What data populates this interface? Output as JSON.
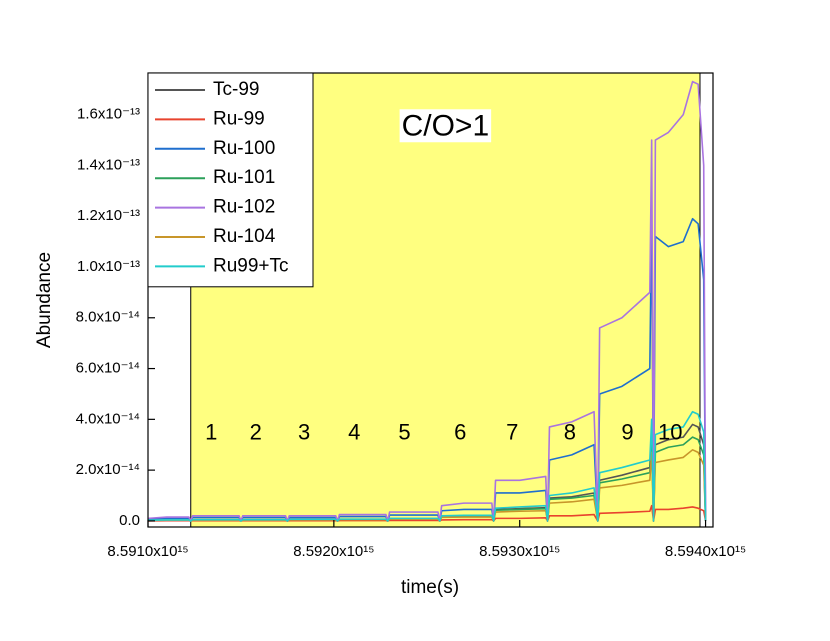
{
  "chart_data": {
    "type": "line",
    "xlabel": "time(s)",
    "ylabel": "Abundance",
    "xlim": [
      8591000000000000.0,
      8594040000000000.0
    ],
    "ylim": [
      -2.4e-15,
      1.764e-13
    ],
    "xticks": [
      {
        "value": 8591000000000000.0,
        "label": "8.5910x10¹⁵"
      },
      {
        "value": 8592000000000000.0,
        "label": "8.5920x10¹⁵"
      },
      {
        "value": 8593000000000000.0,
        "label": "8.5930x10¹⁵"
      },
      {
        "value": 8594000000000000.0,
        "label": "8.5940x10¹⁵"
      }
    ],
    "yticks": [
      {
        "value": 0,
        "label": "0.0"
      },
      {
        "value": 2e-14,
        "label": "2.0x10⁻¹⁴"
      },
      {
        "value": 4e-14,
        "label": "4.0x10⁻¹⁴"
      },
      {
        "value": 6e-14,
        "label": "6.0x10⁻¹⁴"
      },
      {
        "value": 8e-14,
        "label": "8.0x10⁻¹⁴"
      },
      {
        "value": 1e-13,
        "label": "1.0x10⁻¹³"
      },
      {
        "value": 1.2e-13,
        "label": "1.2x10⁻¹³"
      },
      {
        "value": 1.4e-13,
        "label": "1.4x10⁻¹³"
      },
      {
        "value": 1.6e-13,
        "label": "1.6x10⁻¹³"
      }
    ],
    "legend": "upper left",
    "highlight_xlim": [
      8591230000000000.0,
      8593970000000000.0
    ],
    "highlight_color": "#ffff80",
    "annotations": [
      {
        "text": "C/O>1",
        "x": 8592600000000000.0,
        "y": 1.55e-13
      },
      {
        "text": "1",
        "x": 8591340000000000.0,
        "y": 3.43e-14
      },
      {
        "text": "2",
        "x": 8591580000000000.0,
        "y": 3.43e-14
      },
      {
        "text": "3",
        "x": 8591840000000000.0,
        "y": 3.43e-14
      },
      {
        "text": "4",
        "x": 8592110000000000.0,
        "y": 3.43e-14
      },
      {
        "text": "5",
        "x": 8592380000000000.0,
        "y": 3.43e-14
      },
      {
        "text": "6",
        "x": 8592680000000000.0,
        "y": 3.43e-14
      },
      {
        "text": "7",
        "x": 8592960000000000.0,
        "y": 3.43e-14
      },
      {
        "text": "8",
        "x": 8593270000000000.0,
        "y": 3.43e-14
      },
      {
        "text": "9",
        "x": 8593580000000000.0,
        "y": 3.43e-14
      },
      {
        "text": "10",
        "x": 8593810000000000.0,
        "y": 3.43e-14
      }
    ],
    "x": [
      8591000000000000.0,
      8591100000000000.0,
      8591220000000000.0,
      8591230000000000.0,
      8591240000000000.0,
      8591490000000000.0,
      8591500000000000.0,
      8591510000000000.0,
      8591740000000000.0,
      8591750000000000.0,
      8591760000000000.0,
      8592010000000000.0,
      8592020000000000.0,
      8592030000000000.0,
      8592280000000000.0,
      8592290000000000.0,
      8592300000000000.0,
      8592560000000000.0,
      8592570000000000.0,
      8592580000000000.0,
      8592700000000000.0,
      8592850000000000.0,
      8592860000000000.0,
      8592870000000000.0,
      8593000000000000.0,
      8593140000000000.0,
      8593150000000000.0,
      8593160000000000.0,
      8593280000000000.0,
      8593400000000000.0,
      8593420000000000.0,
      8593430000000000.0,
      8593550000000000.0,
      8593700000000000.0,
      8593710000000000.0,
      8593720000000000.0,
      8593730000000000.0,
      8593800000000000.0,
      8593880000000000.0,
      8593930000000000.0,
      8593960000000000.0,
      8593990000000000.0,
      8594000000000000.0
    ],
    "series": [
      {
        "name": "Tc-99",
        "color": "#555555",
        "values": [
          3e-16,
          3e-16,
          3e-16,
          0,
          4e-16,
          4e-16,
          0,
          4e-16,
          4e-16,
          0,
          5e-16,
          5e-16,
          0,
          6e-16,
          6e-16,
          0,
          9e-16,
          9e-16,
          0,
          1.8e-15,
          2e-15,
          2e-15,
          0,
          4.5e-15,
          4.8e-15,
          5.2e-15,
          0,
          9e-15,
          9.5e-15,
          1.1e-14,
          0,
          1.6e-14,
          1.8e-14,
          2.1e-14,
          3.5e-14,
          0,
          3e-14,
          3.2e-14,
          3.3e-14,
          3.8e-14,
          3.7e-14,
          3e-14,
          0
        ]
      },
      {
        "name": "Ru-99",
        "color": "#e8432e",
        "values": [
          0,
          1e-16,
          1e-16,
          0,
          1e-16,
          1e-16,
          0,
          1e-16,
          1e-16,
          0,
          1e-16,
          1e-16,
          0,
          1.5e-16,
          1.5e-16,
          0,
          2e-16,
          2e-16,
          0,
          4e-16,
          5e-16,
          5e-16,
          0,
          1e-15,
          1e-15,
          1.2e-15,
          0,
          2e-15,
          2e-15,
          2.5e-15,
          0,
          3e-15,
          3.3e-15,
          3.8e-15,
          6e-15,
          0,
          4.5e-15,
          4.5e-15,
          5e-15,
          5.5e-15,
          5e-15,
          4e-15,
          0
        ]
      },
      {
        "name": "Ru-100",
        "color": "#1f6fce",
        "values": [
          8e-16,
          1e-15,
          1e-15,
          0,
          1.3e-15,
          1.3e-15,
          0,
          1.3e-15,
          1.3e-15,
          0,
          1.3e-15,
          1.3e-15,
          0,
          1.7e-15,
          1.7e-15,
          0,
          2.3e-15,
          2.3e-15,
          0,
          4e-15,
          4.5e-15,
          4.5e-15,
          0,
          1.1e-14,
          1.1e-14,
          1.2e-14,
          0,
          2.4e-14,
          2.6e-14,
          3e-14,
          0,
          5e-14,
          5.3e-14,
          6e-14,
          1.2e-13,
          0,
          1.12e-13,
          1.08e-13,
          1.1e-13,
          1.19e-13,
          1.17e-13,
          9.5e-14,
          0
        ]
      },
      {
        "name": "Ru-101",
        "color": "#2ca05a",
        "values": [
          3e-16,
          3e-16,
          3e-16,
          0,
          4e-16,
          4e-16,
          0,
          4e-16,
          4e-16,
          0,
          5e-16,
          5e-16,
          0,
          5e-16,
          5e-16,
          0,
          8e-16,
          8e-16,
          0,
          1.6e-15,
          1.8e-15,
          1.8e-15,
          0,
          4.2e-15,
          4.5e-15,
          4.8e-15,
          0,
          8.5e-15,
          9e-15,
          1e-14,
          0,
          1.5e-14,
          1.65e-14,
          1.9e-14,
          3.2e-14,
          0,
          2.7e-14,
          2.9e-14,
          3e-14,
          3.3e-14,
          3.2e-14,
          2.6e-14,
          0
        ]
      },
      {
        "name": "Ru-102",
        "color": "#a974e0",
        "values": [
          1e-15,
          1.5e-15,
          1.5e-15,
          0,
          2e-15,
          2e-15,
          0,
          2e-15,
          2e-15,
          0,
          2e-15,
          2e-15,
          0,
          2.5e-15,
          2.5e-15,
          0,
          3.5e-15,
          3.5e-15,
          0,
          6e-15,
          7e-15,
          7e-15,
          0,
          1.6e-14,
          1.6e-14,
          1.75e-14,
          0,
          3.7e-14,
          3.9e-14,
          4.3e-14,
          0,
          7.6e-14,
          8e-14,
          9e-14,
          1.5e-13,
          0,
          1.5e-13,
          1.53e-13,
          1.6e-13,
          1.73e-13,
          1.72e-13,
          1.4e-13,
          0
        ]
      },
      {
        "name": "Ru-104",
        "color": "#c8962a",
        "values": [
          2e-16,
          3e-16,
          3e-16,
          0,
          3e-16,
          3e-16,
          0,
          3e-16,
          3e-16,
          0,
          4e-16,
          4e-16,
          0,
          5e-16,
          5e-16,
          0,
          7e-16,
          7e-16,
          0,
          1.4e-15,
          1.5e-15,
          1.5e-15,
          0,
          3.5e-15,
          3.8e-15,
          4e-15,
          0,
          7e-15,
          7.5e-15,
          8.5e-15,
          0,
          1.3e-14,
          1.4e-14,
          1.6e-14,
          2.7e-14,
          0,
          2.3e-14,
          2.4e-14,
          2.5e-14,
          2.8e-14,
          2.7e-14,
          2.2e-14,
          0
        ]
      },
      {
        "name": "Ru99+Tc",
        "color": "#22cccc",
        "values": [
          3e-16,
          4e-16,
          4e-16,
          0,
          5e-16,
          5e-16,
          0,
          5e-16,
          5e-16,
          0,
          6e-16,
          6e-16,
          0,
          7e-16,
          7e-16,
          0,
          1e-15,
          1e-15,
          0,
          2e-15,
          2.2e-15,
          2.2e-15,
          0,
          5e-15,
          5.5e-15,
          6e-15,
          0,
          1e-14,
          1.1e-14,
          1.3e-14,
          0,
          1.9e-14,
          2.1e-14,
          2.4e-14,
          4e-14,
          0,
          3.4e-14,
          3.6e-14,
          3.7e-14,
          4.3e-14,
          4.2e-14,
          3.5e-14,
          0
        ]
      }
    ]
  }
}
